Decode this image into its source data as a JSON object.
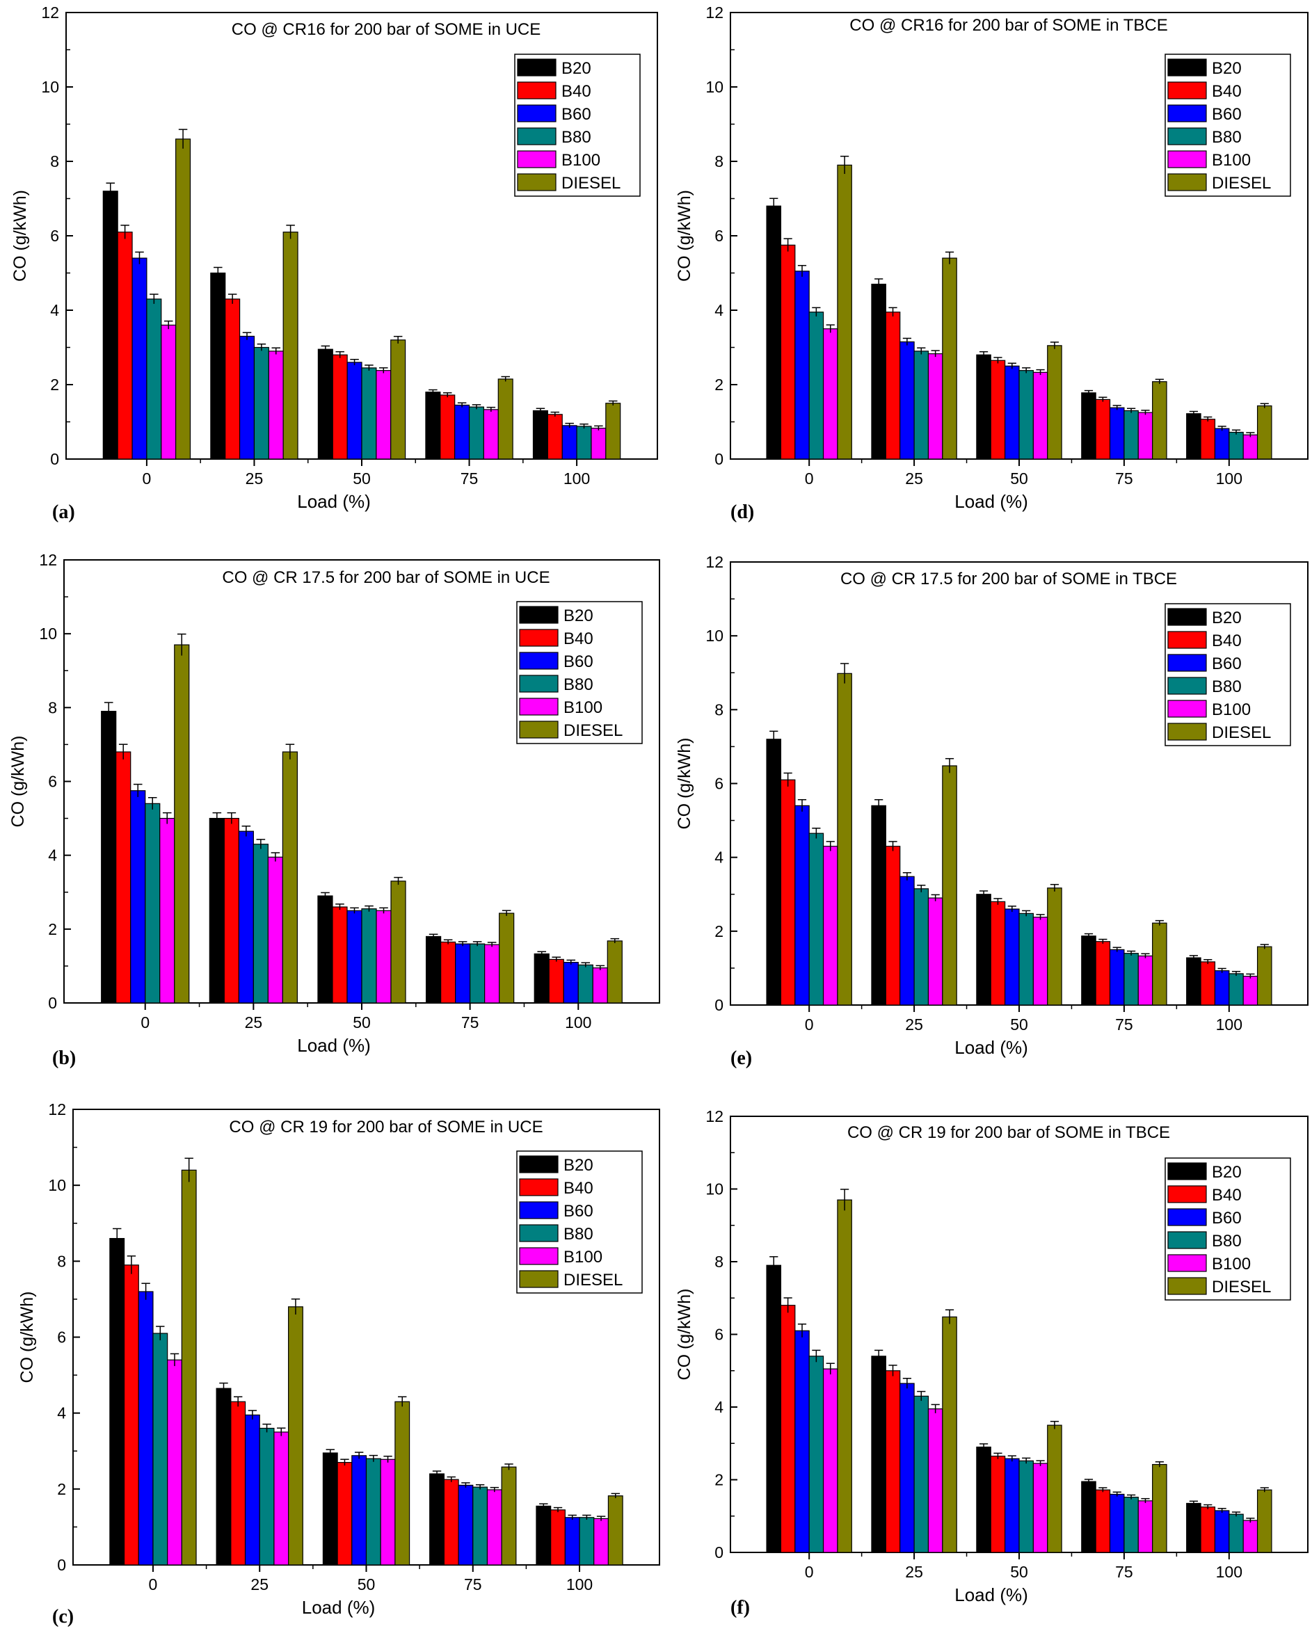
{
  "chart_data": [
    {
      "type": "bar",
      "panel": "(a)",
      "title": "CO @ CR16 for 200 bar of SOME in UCE",
      "xlabel": "Load (%)",
      "ylabel": "CO (g/kWh)",
      "ylim": [
        0,
        12
      ],
      "yticks": [
        "0",
        "2",
        "4",
        "6",
        "8",
        "10",
        "12"
      ],
      "categories": [
        "0",
        "25",
        "50",
        "75",
        "100"
      ],
      "grid": false,
      "legend": "top-right",
      "error_bars": true,
      "series": [
        {
          "name": "B20",
          "color": "#000000",
          "values": [
            7.2,
            5.0,
            2.95,
            1.8,
            1.3
          ]
        },
        {
          "name": "B40",
          "color": "#ff0000",
          "values": [
            6.1,
            4.3,
            2.8,
            1.72,
            1.2
          ]
        },
        {
          "name": "B60",
          "color": "#0000ff",
          "values": [
            5.4,
            3.3,
            2.6,
            1.45,
            0.9
          ]
        },
        {
          "name": "B80",
          "color": "#008080",
          "values": [
            4.3,
            3.0,
            2.45,
            1.4,
            0.88
          ]
        },
        {
          "name": "B100",
          "color": "#ff00ff",
          "values": [
            3.6,
            2.9,
            2.38,
            1.33,
            0.83
          ]
        },
        {
          "name": "DIESEL",
          "color": "#808000",
          "values": [
            8.6,
            6.1,
            3.2,
            2.15,
            1.5
          ]
        }
      ]
    },
    {
      "type": "bar",
      "panel": "(b)",
      "title": "CO @ CR 17.5 for 200 bar of SOME in UCE",
      "xlabel": "Load (%)",
      "ylabel": "CO (g/kWh)",
      "ylim": [
        0,
        12
      ],
      "yticks": [
        "0",
        "2",
        "4",
        "6",
        "8",
        "10",
        "12"
      ],
      "categories": [
        "0",
        "25",
        "50",
        "75",
        "100"
      ],
      "grid": false,
      "legend": "top-right",
      "error_bars": true,
      "series": [
        {
          "name": "B20",
          "color": "#000000",
          "values": [
            7.9,
            5.0,
            2.9,
            1.8,
            1.33
          ]
        },
        {
          "name": "B40",
          "color": "#ff0000",
          "values": [
            6.8,
            5.0,
            2.6,
            1.65,
            1.18
          ]
        },
        {
          "name": "B60",
          "color": "#0000ff",
          "values": [
            5.75,
            4.65,
            2.5,
            1.6,
            1.1
          ]
        },
        {
          "name": "B80",
          "color": "#008080",
          "values": [
            5.4,
            4.3,
            2.55,
            1.6,
            1.03
          ]
        },
        {
          "name": "B100",
          "color": "#ff00ff",
          "values": [
            5.0,
            3.95,
            2.5,
            1.58,
            0.95
          ]
        },
        {
          "name": "DIESEL",
          "color": "#808000",
          "values": [
            9.7,
            6.8,
            3.3,
            2.43,
            1.68
          ]
        }
      ]
    },
    {
      "type": "bar",
      "panel": "(c)",
      "title": "CO @ CR 19 for 200 bar of SOME in UCE",
      "xlabel": "Load (%)",
      "ylabel": "CO (g/kWh)",
      "ylim": [
        0,
        12
      ],
      "yticks": [
        "0",
        "2",
        "4",
        "6",
        "8",
        "10",
        "12"
      ],
      "categories": [
        "0",
        "25",
        "50",
        "75",
        "100"
      ],
      "grid": false,
      "legend": "top-right",
      "error_bars": true,
      "series": [
        {
          "name": "B20",
          "color": "#000000",
          "values": [
            8.6,
            4.65,
            2.95,
            2.4,
            1.55
          ]
        },
        {
          "name": "B40",
          "color": "#ff0000",
          "values": [
            7.9,
            4.3,
            2.7,
            2.25,
            1.45
          ]
        },
        {
          "name": "B60",
          "color": "#0000ff",
          "values": [
            7.2,
            3.95,
            2.88,
            2.1,
            1.25
          ]
        },
        {
          "name": "B80",
          "color": "#008080",
          "values": [
            6.1,
            3.6,
            2.8,
            2.05,
            1.25
          ]
        },
        {
          "name": "B100",
          "color": "#ff00ff",
          "values": [
            5.4,
            3.5,
            2.78,
            1.98,
            1.22
          ]
        },
        {
          "name": "DIESEL",
          "color": "#808000",
          "values": [
            10.4,
            6.8,
            4.3,
            2.58,
            1.82
          ]
        }
      ]
    },
    {
      "type": "bar",
      "panel": "(d)",
      "title": "CO @ CR16 for 200 bar of SOME in TBCE",
      "xlabel": "Load (%)",
      "ylabel": "CO (g/kWh)",
      "ylim": [
        0,
        12
      ],
      "yticks": [
        "0",
        "2",
        "4",
        "6",
        "8",
        "10",
        "12"
      ],
      "categories": [
        "0",
        "25",
        "50",
        "75",
        "100"
      ],
      "grid": false,
      "legend": "top-right",
      "error_bars": true,
      "series": [
        {
          "name": "B20",
          "color": "#000000",
          "values": [
            6.8,
            4.7,
            2.8,
            1.78,
            1.22
          ]
        },
        {
          "name": "B40",
          "color": "#ff0000",
          "values": [
            5.75,
            3.95,
            2.65,
            1.6,
            1.07
          ]
        },
        {
          "name": "B60",
          "color": "#0000ff",
          "values": [
            5.05,
            3.15,
            2.5,
            1.38,
            0.82
          ]
        },
        {
          "name": "B80",
          "color": "#008080",
          "values": [
            3.95,
            2.9,
            2.38,
            1.3,
            0.72
          ]
        },
        {
          "name": "B100",
          "color": "#ff00ff",
          "values": [
            3.5,
            2.83,
            2.33,
            1.25,
            0.65
          ]
        },
        {
          "name": "DIESEL",
          "color": "#808000",
          "values": [
            7.9,
            5.4,
            3.05,
            2.08,
            1.43
          ]
        }
      ]
    },
    {
      "type": "bar",
      "panel": "(e)",
      "title": "CO @ CR 17.5 for 200 bar of SOME in TBCE",
      "xlabel": "Load (%)",
      "ylabel": "CO (g/kWh)",
      "ylim": [
        0,
        12
      ],
      "yticks": [
        "0",
        "2",
        "4",
        "6",
        "8",
        "10",
        "12"
      ],
      "categories": [
        "0",
        "25",
        "50",
        "75",
        "100"
      ],
      "grid": false,
      "legend": "top-right",
      "error_bars": true,
      "series": [
        {
          "name": "B20",
          "color": "#000000",
          "values": [
            7.2,
            5.4,
            3.0,
            1.87,
            1.28
          ]
        },
        {
          "name": "B40",
          "color": "#ff0000",
          "values": [
            6.1,
            4.3,
            2.8,
            1.72,
            1.17
          ]
        },
        {
          "name": "B60",
          "color": "#0000ff",
          "values": [
            5.4,
            3.48,
            2.6,
            1.5,
            0.93
          ]
        },
        {
          "name": "B80",
          "color": "#008080",
          "values": [
            4.65,
            3.15,
            2.48,
            1.4,
            0.85
          ]
        },
        {
          "name": "B100",
          "color": "#ff00ff",
          "values": [
            4.3,
            2.9,
            2.38,
            1.33,
            0.78
          ]
        },
        {
          "name": "DIESEL",
          "color": "#808000",
          "values": [
            8.98,
            6.48,
            3.17,
            2.22,
            1.58
          ]
        }
      ]
    },
    {
      "type": "bar",
      "panel": "(f)",
      "title": "CO @ CR 19 for 200 bar of SOME in TBCE",
      "xlabel": "Load (%)",
      "ylabel": "CO (g/kWh)",
      "ylim": [
        0,
        12
      ],
      "yticks": [
        "0",
        "2",
        "4",
        "6",
        "8",
        "10",
        "12"
      ],
      "categories": [
        "0",
        "25",
        "50",
        "75",
        "100"
      ],
      "grid": false,
      "legend": "top-right",
      "error_bars": true,
      "series": [
        {
          "name": "B20",
          "color": "#000000",
          "values": [
            7.9,
            5.4,
            2.9,
            1.95,
            1.35
          ]
        },
        {
          "name": "B40",
          "color": "#ff0000",
          "values": [
            6.8,
            5.0,
            2.65,
            1.72,
            1.25
          ]
        },
        {
          "name": "B60",
          "color": "#0000ff",
          "values": [
            6.1,
            4.65,
            2.58,
            1.6,
            1.15
          ]
        },
        {
          "name": "B80",
          "color": "#008080",
          "values": [
            5.4,
            4.3,
            2.52,
            1.52,
            1.05
          ]
        },
        {
          "name": "B100",
          "color": "#ff00ff",
          "values": [
            5.05,
            3.95,
            2.45,
            1.42,
            0.88
          ]
        },
        {
          "name": "DIESEL",
          "color": "#808000",
          "values": [
            9.7,
            6.48,
            3.5,
            2.42,
            1.72
          ]
        }
      ]
    }
  ]
}
